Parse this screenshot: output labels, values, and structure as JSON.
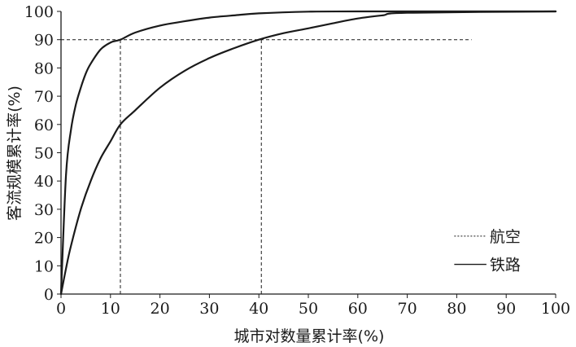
{
  "chart_data": {
    "type": "line",
    "xlabel": "城市对数量累计率(%)",
    "ylabel": "客流规模累计率(%)",
    "xlim": [
      0,
      100
    ],
    "ylim": [
      0,
      100
    ],
    "xticks": [
      0,
      10,
      20,
      30,
      40,
      50,
      60,
      70,
      80,
      90,
      100
    ],
    "yticks": [
      0,
      10,
      20,
      30,
      40,
      50,
      60,
      70,
      80,
      90,
      100
    ],
    "grid": false,
    "legend_position": "bottom-right",
    "series": [
      {
        "name": "航空",
        "style": "dashed",
        "x": [
          0,
          1,
          2,
          3,
          4,
          5,
          6,
          8,
          10,
          12,
          15,
          20,
          25,
          30,
          35,
          40,
          50,
          60,
          100
        ],
        "y": [
          0,
          42,
          58,
          67,
          73,
          78,
          81.5,
          86.5,
          89,
          90,
          92.5,
          95,
          96.5,
          97.8,
          98.6,
          99.3,
          99.9,
          100,
          100
        ]
      },
      {
        "name": "铁路",
        "style": "solid",
        "x": [
          0,
          1,
          2,
          4,
          6,
          8,
          10,
          12,
          15,
          20,
          25,
          30,
          35,
          40,
          45,
          50,
          55,
          60,
          65,
          70,
          100
        ],
        "y": [
          0,
          9,
          17,
          30,
          40,
          48,
          54,
          60,
          65,
          73,
          79,
          83.5,
          87,
          90,
          92.3,
          94,
          95.8,
          97.5,
          98.6,
          99.5,
          100
        ]
      }
    ],
    "reference_lines": [
      {
        "type": "horizontal",
        "y": 90,
        "x_start": 0,
        "x_end": 83,
        "style": "dashed"
      },
      {
        "type": "vertical",
        "x": 12,
        "y_start": 0,
        "y_end": 90,
        "style": "dashed"
      },
      {
        "type": "vertical",
        "x": 40.5,
        "y_start": 0,
        "y_end": 90,
        "style": "dashed"
      }
    ],
    "colors": {
      "line": "#1a1a1a",
      "axis": "#1a1a1a",
      "background": "#ffffff"
    }
  }
}
